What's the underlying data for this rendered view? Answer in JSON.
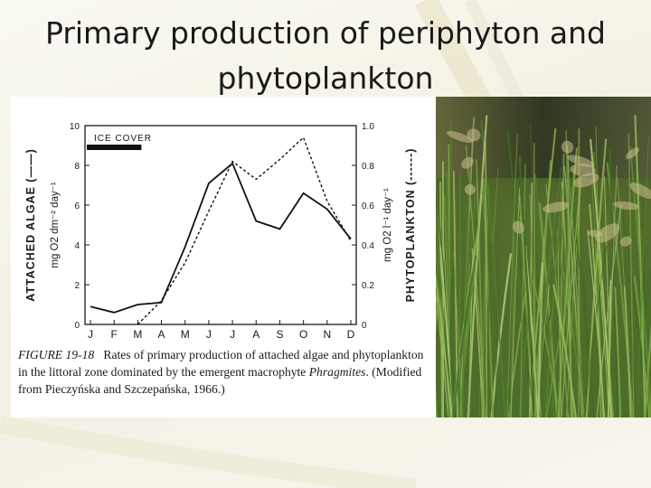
{
  "slide": {
    "title_line1": "Primary production of periphyton and",
    "title_line2": "phytoplankton"
  },
  "figure": {
    "caption_number": "FIGURE 19-18",
    "caption_pre": "Rates of primary production of attached algae and phytoplankton in the littoral zone dominated by the emergent macrophyte ",
    "caption_genus": "Phragmites",
    "caption_post": ". (Modified from Pieczyńska and Szczepańska, 1966.)"
  },
  "chart_data": {
    "type": "line",
    "title": "",
    "annotation": "ICE COVER",
    "annotation_span": [
      "J",
      "M"
    ],
    "categories": [
      "J",
      "F",
      "M",
      "A",
      "M",
      "J",
      "J",
      "A",
      "S",
      "O",
      "N",
      "D"
    ],
    "left_axis": {
      "label_main": "ATTACHED ALGAE (——)",
      "label_units": "mg O2 dm⁻² day⁻¹",
      "ylim": [
        0,
        10
      ],
      "ticks": [
        "0",
        "2",
        "4",
        "6",
        "8",
        "10"
      ]
    },
    "right_axis": {
      "label_main": "PHYTOPLANKTON (------)",
      "label_units": "mg O2 l⁻¹ day⁻¹",
      "ylim": [
        0,
        1.0
      ],
      "ticks": [
        "0",
        "0.2",
        "0.4",
        "0.6",
        "0.8",
        "1.0"
      ]
    },
    "series": [
      {
        "axis": "left",
        "style": "solid",
        "x": [
          0,
          1,
          2,
          3,
          4,
          5,
          6,
          7,
          8,
          9,
          10,
          11
        ],
        "values": [
          0.9,
          0.6,
          1.0,
          1.1,
          3.9,
          7.1,
          8.1,
          5.2,
          4.8,
          6.6,
          5.8,
          4.3
        ]
      },
      {
        "axis": "right",
        "style": "dashed",
        "x": [
          2,
          3,
          4,
          5,
          6,
          7,
          8,
          9,
          10,
          11
        ],
        "values": [
          0.0,
          0.12,
          0.31,
          0.57,
          0.82,
          0.73,
          0.83,
          0.94,
          0.62,
          0.42
        ]
      }
    ]
  }
}
